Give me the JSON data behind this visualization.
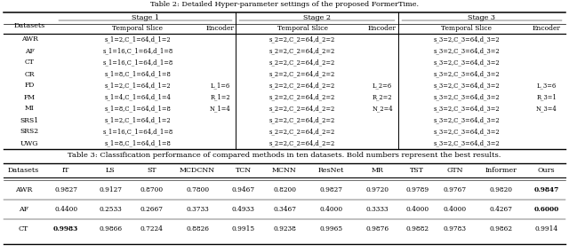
{
  "table2_title": "Table 2: Detailed Hyper-parameter settings of the proposed FormerTime.",
  "table2_datasets": [
    "AWR",
    "AF",
    "CT",
    "CR",
    "FD",
    "FM",
    "MI",
    "SRS1",
    "SRS2",
    "UWG"
  ],
  "table2_ts1": [
    "s_1=2,C_1=64,d_1=2",
    "s_1=16,C_1=64,d_1=8",
    "s_1=16,C_1=64,d_1=8",
    "s_1=8,C_1=64,d_1=8",
    "s_1=2,C_1=64,d_1=2",
    "s_1=4,C_1=64,d_1=4",
    "s_1=8,C_1=64,d_1=8",
    "s_1=2,C_1=64,d_1=2",
    "s_1=16,C_1=64,d_1=8",
    "s_1=8,C_1=64,d_1=8"
  ],
  "table2_ts2": [
    "s_2=2,C_2=64,d_2=2",
    "s_2=2,C_2=64,d_2=2",
    "s_2=2,C_2=64,d_2=2",
    "s_2=2,C_2=64,d_2=2",
    "s_2=2,C_2=64,d_2=2",
    "s_2=2,C_2=64,d_2=2",
    "s_2=2,C_2=64,d_2=2",
    "s_2=2,C_2=64,d_2=2",
    "s_2=2,C_2=64,d_2=2",
    "s_2=2,C_2=64,d_2=2"
  ],
  "table2_ts3": [
    "s_3=2,C_3=64,d_3=2",
    "s_3=2,C_3=64,d_3=2",
    "s_3=2,C_3=64,d_3=2",
    "s_3=2,C_3=64,d_3=2",
    "s_3=2,C_3=64,d_3=2",
    "s_3=2,C_3=64,d_3=2",
    "s_3=2,C_3=64,d_3=2",
    "s_3=2,C_3=64,d_3=2",
    "s_3=2,C_3=64,d_3=2",
    "s_3=2,C_3=64,d_3=2"
  ],
  "enc1_lines": [
    "L_1=6",
    "R_1=2",
    "N_1=4"
  ],
  "enc2_lines": [
    "L_2=6",
    "R_2=2",
    "N_2=4"
  ],
  "enc3_lines": [
    "L_3=6",
    "R_3=1",
    "N_3=4"
  ],
  "table3_title": "Table 3: Classification performance of compared methods in ten datasets. Bold numbers represent the best results.",
  "table3_headers": [
    "Datasets",
    "IT",
    "LS",
    "ST",
    "MCDCNN",
    "TCN",
    "MCNN",
    "ResNet",
    "MR",
    "TST",
    "GTN",
    "Informer",
    "Ours"
  ],
  "table3_datasets": [
    "AWR",
    "AF",
    "CT"
  ],
  "table3_data": [
    [
      "0.9827",
      "0.9127",
      "0.8700",
      "0.7800",
      "0.9467",
      "0.8200",
      "0.9827",
      "0.9720",
      "0.9789",
      "0.9767",
      "0.9820",
      "0.9847"
    ],
    [
      "0.4400",
      "0.2533",
      "0.2667",
      "0.3733",
      "0.4933",
      "0.3467",
      "0.4000",
      "0.3333",
      "0.4000",
      "0.4000",
      "0.4267",
      "0.6000"
    ],
    [
      "0.9983",
      "0.9866",
      "0.7224",
      "0.8826",
      "0.9915",
      "0.9238",
      "0.9965",
      "0.9876",
      "0.9882",
      "0.9783",
      "0.9862",
      "0.9914"
    ]
  ],
  "table3_bold": [
    [
      false,
      false,
      false,
      false,
      false,
      false,
      false,
      false,
      false,
      false,
      false,
      true
    ],
    [
      false,
      false,
      false,
      false,
      false,
      false,
      false,
      false,
      false,
      false,
      false,
      true
    ],
    [
      true,
      false,
      false,
      false,
      false,
      false,
      false,
      false,
      false,
      false,
      false,
      false
    ]
  ],
  "bg_color": "#ffffff",
  "text_color": "#000000"
}
